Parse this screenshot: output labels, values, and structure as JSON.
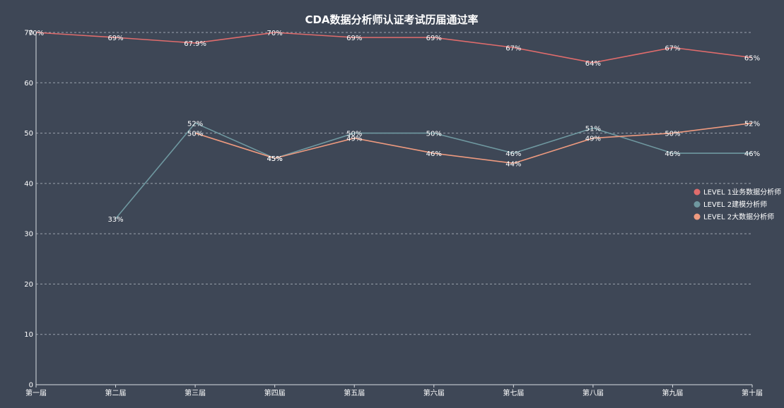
{
  "chart_data": {
    "type": "line",
    "title": "CDA数据分析师认证考试历届通过率",
    "categories": [
      "第一届",
      "第二届",
      "第三届",
      "第四届",
      "第五届",
      "第六届",
      "第七届",
      "第八届",
      "第九届",
      "第十届"
    ],
    "ylim": [
      0,
      70
    ],
    "yticks": [
      0,
      10,
      20,
      30,
      40,
      50,
      60,
      70
    ],
    "grid": true,
    "legend_position": "right",
    "series": [
      {
        "name": "LEVEL 1业务数据分析师",
        "color": "#e06c6c",
        "values": [
          70,
          69,
          67.9,
          70,
          69,
          69,
          67,
          64,
          67,
          65
        ],
        "labels": [
          "70%",
          "69%",
          "67.9%",
          "70%",
          "69%",
          "69%",
          "67%",
          "64%",
          "67%",
          "65%"
        ]
      },
      {
        "name": "LEVEL 2建模分析师",
        "color": "#6f98a0",
        "values": [
          null,
          33,
          52,
          45,
          50,
          50,
          46,
          51,
          46,
          46
        ],
        "labels": [
          null,
          "33%",
          "52%",
          "45%",
          "50%",
          "50%",
          "46%",
          "51%",
          "46%",
          "46%"
        ]
      },
      {
        "name": "LEVEL 2大数据分析师",
        "color": "#ee9a7f",
        "values": [
          null,
          null,
          50,
          45,
          49,
          46,
          44,
          49,
          50,
          52
        ],
        "labels": [
          null,
          null,
          "50%",
          "45%",
          "49%",
          "46%",
          "44%",
          "49%",
          "50%",
          "52%"
        ]
      }
    ]
  }
}
